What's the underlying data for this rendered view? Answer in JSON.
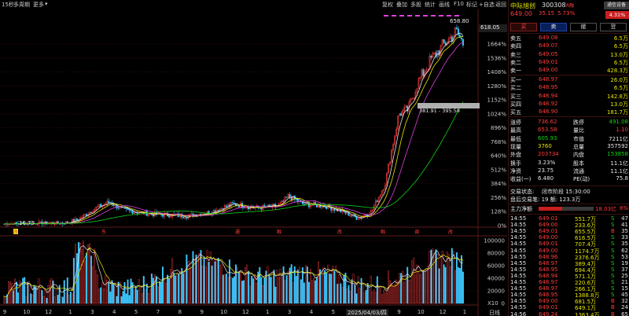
{
  "toolbar": {
    "left": [
      "15秒",
      "多周期",
      "更多"
    ],
    "right": [
      "复权",
      "叠加",
      "多股",
      "统计",
      "画线",
      "F10",
      "标记",
      "+自选",
      "返回"
    ]
  },
  "stock": {
    "name": "中际旭创",
    "code": "300308",
    "badge": "R融",
    "price": "649.00",
    "change": "35.15",
    "change_pct": "5.73%",
    "notify_button": "通信设备",
    "industry_pct": "4.31%"
  },
  "trade_tabs": [
    "买",
    "卖",
    "撤",
    "登"
  ],
  "asks": [
    {
      "label": "卖五",
      "price": "649.08",
      "vol": "6.5万"
    },
    {
      "label": "卖四",
      "price": "649.07",
      "vol": "6.5万"
    },
    {
      "label": "卖三",
      "price": "649.05",
      "vol": "13.0万"
    },
    {
      "label": "卖二",
      "price": "649.01",
      "vol": "6.5万"
    },
    {
      "label": "卖一",
      "price": "649.00",
      "vol": "428.3万"
    }
  ],
  "bids": [
    {
      "label": "买一",
      "price": "648.97",
      "vol": "26.0万"
    },
    {
      "label": "买二",
      "price": "648.95",
      "vol": "6.5万"
    },
    {
      "label": "买三",
      "price": "648.94",
      "vol": "142.8万"
    },
    {
      "label": "买四",
      "price": "648.92",
      "vol": "13.0万"
    },
    {
      "label": "买五",
      "price": "648.90",
      "vol": "181.7万"
    }
  ],
  "stats": [
    {
      "l1": "涨停",
      "v1": "736.62",
      "c1": "red",
      "l2": "跌停",
      "v2": "491.08",
      "c2": "green"
    },
    {
      "l1": "最高",
      "v1": "653.58",
      "c1": "red",
      "l2": "量比",
      "v2": "1.10",
      "c2": "red"
    },
    {
      "l1": "最低",
      "v1": "605.93",
      "c1": "green",
      "l2": "市值",
      "v2": "7211亿",
      "c2": "white"
    },
    {
      "l1": "现量",
      "v1": "3760",
      "c1": "yellow",
      "l2": "总量",
      "v2": "357592",
      "c2": "white"
    },
    {
      "l1": "外盘",
      "v1": "203734",
      "c1": "red",
      "l2": "内盘",
      "v2": "153858",
      "c2": "green"
    },
    {
      "l1": "换手",
      "v1": "3.23%",
      "c1": "white",
      "l2": "股本",
      "v2": "11.1亿",
      "c2": "white"
    },
    {
      "l1": "净资",
      "v1": "23.75",
      "c1": "white",
      "l2": "流通",
      "v2": "11.1亿",
      "c2": "white"
    },
    {
      "l1": "收益(一)",
      "v1": "6.480",
      "c1": "white",
      "l2": "PE(动)",
      "v2": "75.8",
      "c2": "white"
    }
  ],
  "trade_status": {
    "label": "交易状态:",
    "value": "闭市阶段 15:30:00"
  },
  "after_hours": {
    "text": "盘后交易笔: 19 额: 123.3万"
  },
  "main_net": {
    "label": "主力净额",
    "value": "18.03亿",
    "pct": "8%"
  },
  "ticks": [
    {
      "time": "14:55",
      "price": "649.01",
      "vol": "551.7万",
      "side": "S",
      "count": "47"
    },
    {
      "time": "14:55",
      "price": "649.00",
      "vol": "233.6万",
      "side": "S",
      "count": "41"
    },
    {
      "time": "14:55",
      "price": "649.01",
      "vol": "655.5万",
      "side": "B",
      "count": "35"
    },
    {
      "time": "14:55",
      "price": "649.00",
      "vol": "616.5万",
      "side": "S",
      "count": "33"
    },
    {
      "time": "14:55",
      "price": "649.01",
      "vol": "707.4万",
      "side": "S",
      "count": "35"
    },
    {
      "time": "14:55",
      "price": "649.00",
      "vol": "1174.7万",
      "side": "S",
      "count": "62"
    },
    {
      "time": "14:55",
      "price": "648.96",
      "vol": "2376.6万",
      "side": "S",
      "count": "53"
    },
    {
      "time": "14:55",
      "price": "648.97",
      "vol": "389.4万",
      "side": "S",
      "count": "19"
    },
    {
      "time": "14:55",
      "price": "648.95",
      "vol": "694.4万",
      "side": "S",
      "count": "37"
    },
    {
      "time": "14:55",
      "price": "648.94",
      "vol": "571.1万",
      "side": "S",
      "count": "25"
    },
    {
      "time": "14:55",
      "price": "648.97",
      "vol": "220.6万",
      "side": "S",
      "count": "21"
    },
    {
      "time": "14:55",
      "price": "648.97",
      "vol": "266.1万",
      "side": "S",
      "count": "15"
    },
    {
      "time": "14:55",
      "price": "648.95",
      "vol": "1388.8万",
      "side": "S",
      "count": "45"
    },
    {
      "time": "14:55",
      "price": "649.00",
      "vol": "681.5万",
      "side": "B",
      "count": "32"
    },
    {
      "time": "14:55",
      "price": "649.01",
      "vol": "649.1万",
      "side": "B",
      "count": "24"
    },
    {
      "time": "14:56",
      "price": "649.24",
      "vol": "1363.4万",
      "side": "B",
      "count": "65"
    }
  ],
  "chart": {
    "price_axis": [
      "1664%",
      "1536%",
      "1408%",
      "1280%",
      "1152%",
      "1024%",
      "896%",
      "768%",
      "640%",
      "512%",
      "384%",
      "256%",
      "128%",
      "0%"
    ],
    "current_price_tag": "618.05",
    "high_label": "658.80",
    "low_label": "16.75",
    "range_label": "381.91 - 395.58",
    "volume_axis": [
      "100000",
      "80000",
      "60000",
      "40000",
      "20000",
      "0"
    ],
    "volume_unit": "X10",
    "period": "日线",
    "date_label": "2025/04/03/四",
    "x_ticks": [
      "9",
      "10",
      "12",
      "1",
      "3",
      "4",
      "5",
      "7",
      "8",
      "9",
      "10",
      "12",
      "1",
      "3",
      "4",
      "5",
      "7",
      "8",
      "9",
      "10",
      "12",
      "1"
    ],
    "event_markers": [
      "S",
      "S",
      "S",
      "S",
      "S",
      "S",
      "S",
      "S"
    ],
    "event_texts": [
      "改",
      "东",
      "通",
      "融",
      "改",
      "融",
      "调",
      "改"
    ]
  }
}
